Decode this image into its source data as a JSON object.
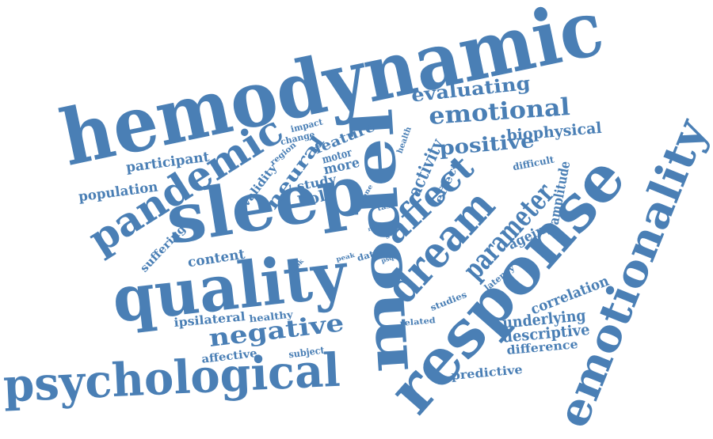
{
  "color": "#4a7fb5",
  "words": [
    {
      "key": "hemodynamic",
      "text": "hemodynamic"
    },
    {
      "key": "model",
      "text": "model"
    },
    {
      "key": "response",
      "text": "response"
    },
    {
      "key": "emotionality",
      "text": "emotionality"
    },
    {
      "key": "sleep",
      "text": "sleep"
    },
    {
      "key": "quality",
      "text": "quality"
    },
    {
      "key": "psychological",
      "text": "psychological"
    },
    {
      "key": "pandemic",
      "text": "pandemic"
    },
    {
      "key": "dream",
      "text": "dream"
    },
    {
      "key": "affect",
      "text": "affect"
    },
    {
      "key": "parameter",
      "text": "parameter"
    },
    {
      "key": "negative",
      "text": "negative"
    },
    {
      "key": "emotional",
      "text": "emotional"
    },
    {
      "key": "evaluating",
      "text": "evaluating"
    },
    {
      "key": "positive",
      "text": "positive"
    },
    {
      "key": "neural",
      "text": "neural"
    },
    {
      "key": "biophysical",
      "text": "biophysical"
    },
    {
      "key": "participant",
      "text": "participant"
    },
    {
      "key": "population",
      "text": "population"
    },
    {
      "key": "content",
      "text": "content"
    },
    {
      "key": "suffering",
      "text": "suffering"
    },
    {
      "key": "validity",
      "text": "validity"
    },
    {
      "key": "feature",
      "text": "feature"
    },
    {
      "key": "impact",
      "text": "impact"
    },
    {
      "key": "change",
      "text": "change"
    },
    {
      "key": "region",
      "text": "region"
    },
    {
      "key": "motor",
      "text": "motor"
    },
    {
      "key": "more",
      "text": "more"
    },
    {
      "key": "study",
      "text": "study"
    },
    {
      "key": "bold",
      "text": "bold"
    },
    {
      "key": "tone",
      "text": "tone"
    },
    {
      "key": "look",
      "text": "look"
    },
    {
      "key": "activity",
      "text": "activity"
    },
    {
      "key": "effect",
      "text": "effect"
    },
    {
      "key": "health",
      "text": "health"
    },
    {
      "key": "difficult",
      "text": "difficult"
    },
    {
      "key": "task",
      "text": "task"
    },
    {
      "key": "rate",
      "text": "rate"
    },
    {
      "key": "str",
      "text": "str"
    },
    {
      "key": "peak",
      "text": "peak"
    },
    {
      "key": "data",
      "text": "data"
    },
    {
      "key": "psql",
      "text": "psql"
    },
    {
      "key": "ageing",
      "text": "ageing"
    },
    {
      "key": "amplitude",
      "text": "amplitude"
    },
    {
      "key": "latency",
      "text": "latency"
    },
    {
      "key": "studies",
      "text": "studies"
    },
    {
      "key": "correlation",
      "text": "correlation"
    },
    {
      "key": "related",
      "text": "related"
    },
    {
      "key": "underlying",
      "text": "underlying"
    },
    {
      "key": "descriptive",
      "text": "descriptive"
    },
    {
      "key": "difference",
      "text": "difference"
    },
    {
      "key": "predictive",
      "text": "predictive"
    },
    {
      "key": "ipsilateral",
      "text": "ipsilateral"
    },
    {
      "key": "healthy",
      "text": "healthy"
    },
    {
      "key": "affective",
      "text": "affective"
    },
    {
      "key": "subject",
      "text": "subject"
    }
  ]
}
